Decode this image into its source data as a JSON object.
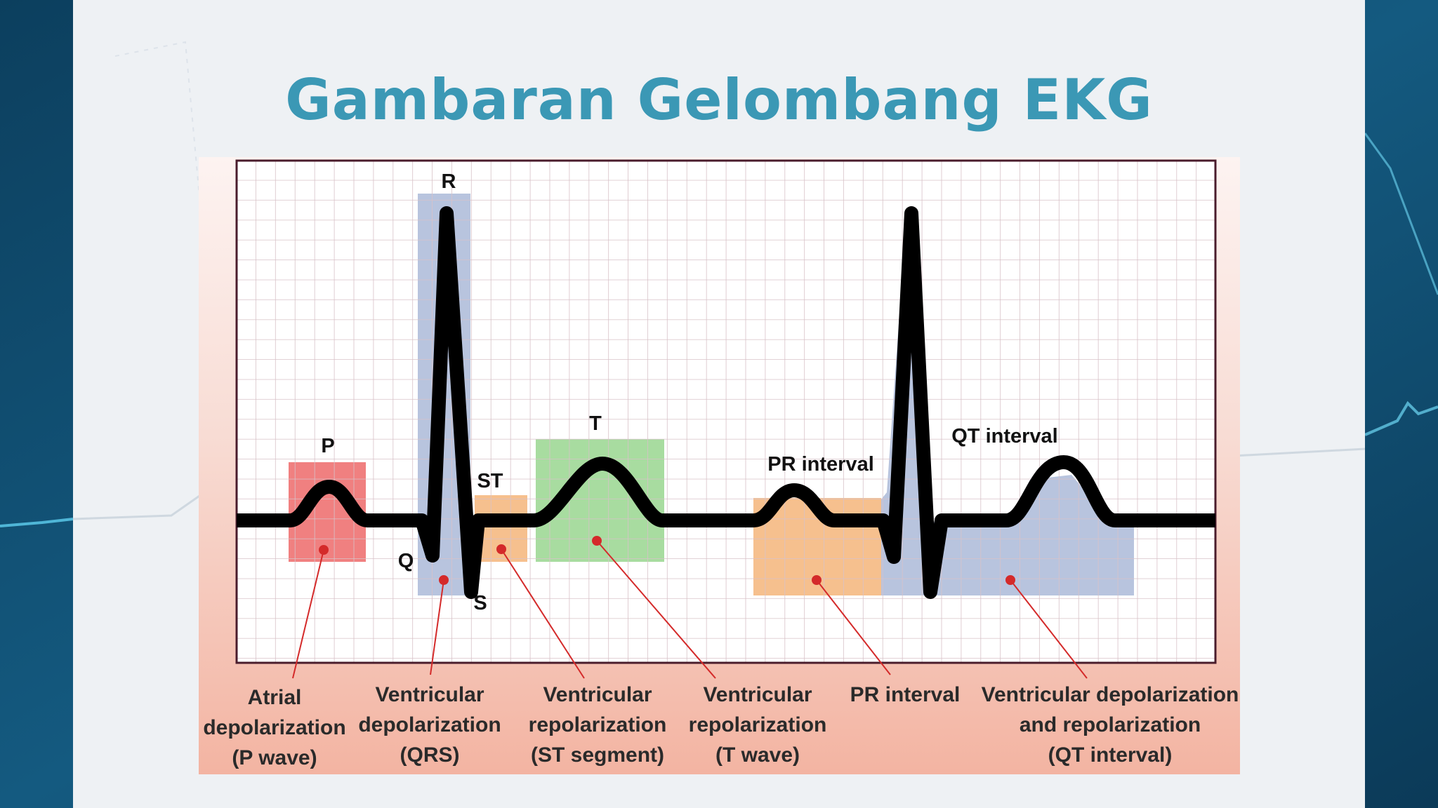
{
  "slide": {
    "title": "Gambaran Gelombang EKG"
  },
  "diagram": {
    "wave_labels": {
      "p": "P",
      "q": "Q",
      "r": "R",
      "s": "S",
      "st": "ST",
      "t": "T",
      "pr_interval": "PR interval",
      "qt_interval": "QT interval"
    },
    "captions": [
      [
        "Atrial",
        "depolarization",
        "(P wave)"
      ],
      [
        "Ventricular",
        "depolarization",
        "(QRS)"
      ],
      [
        "Ventricular",
        "repolarization",
        "(ST segment)"
      ],
      [
        "Ventricular",
        "repolarization",
        "(T wave)"
      ],
      [
        "PR interval"
      ],
      [
        "Ventricular depolarization",
        "and repolarization",
        "(QT interval)"
      ]
    ],
    "colors": {
      "p_region": "#f08080",
      "qrs_region": "#b8c4de",
      "st_region": "#f6c08e",
      "t_region": "#a8dca0",
      "pr_region": "#f6c08e",
      "qt_region": "#b8c4de",
      "trace": "#000000",
      "pointer": "#d42a2a",
      "grid": "#d8c2c8",
      "title": "#3b98b5"
    }
  }
}
